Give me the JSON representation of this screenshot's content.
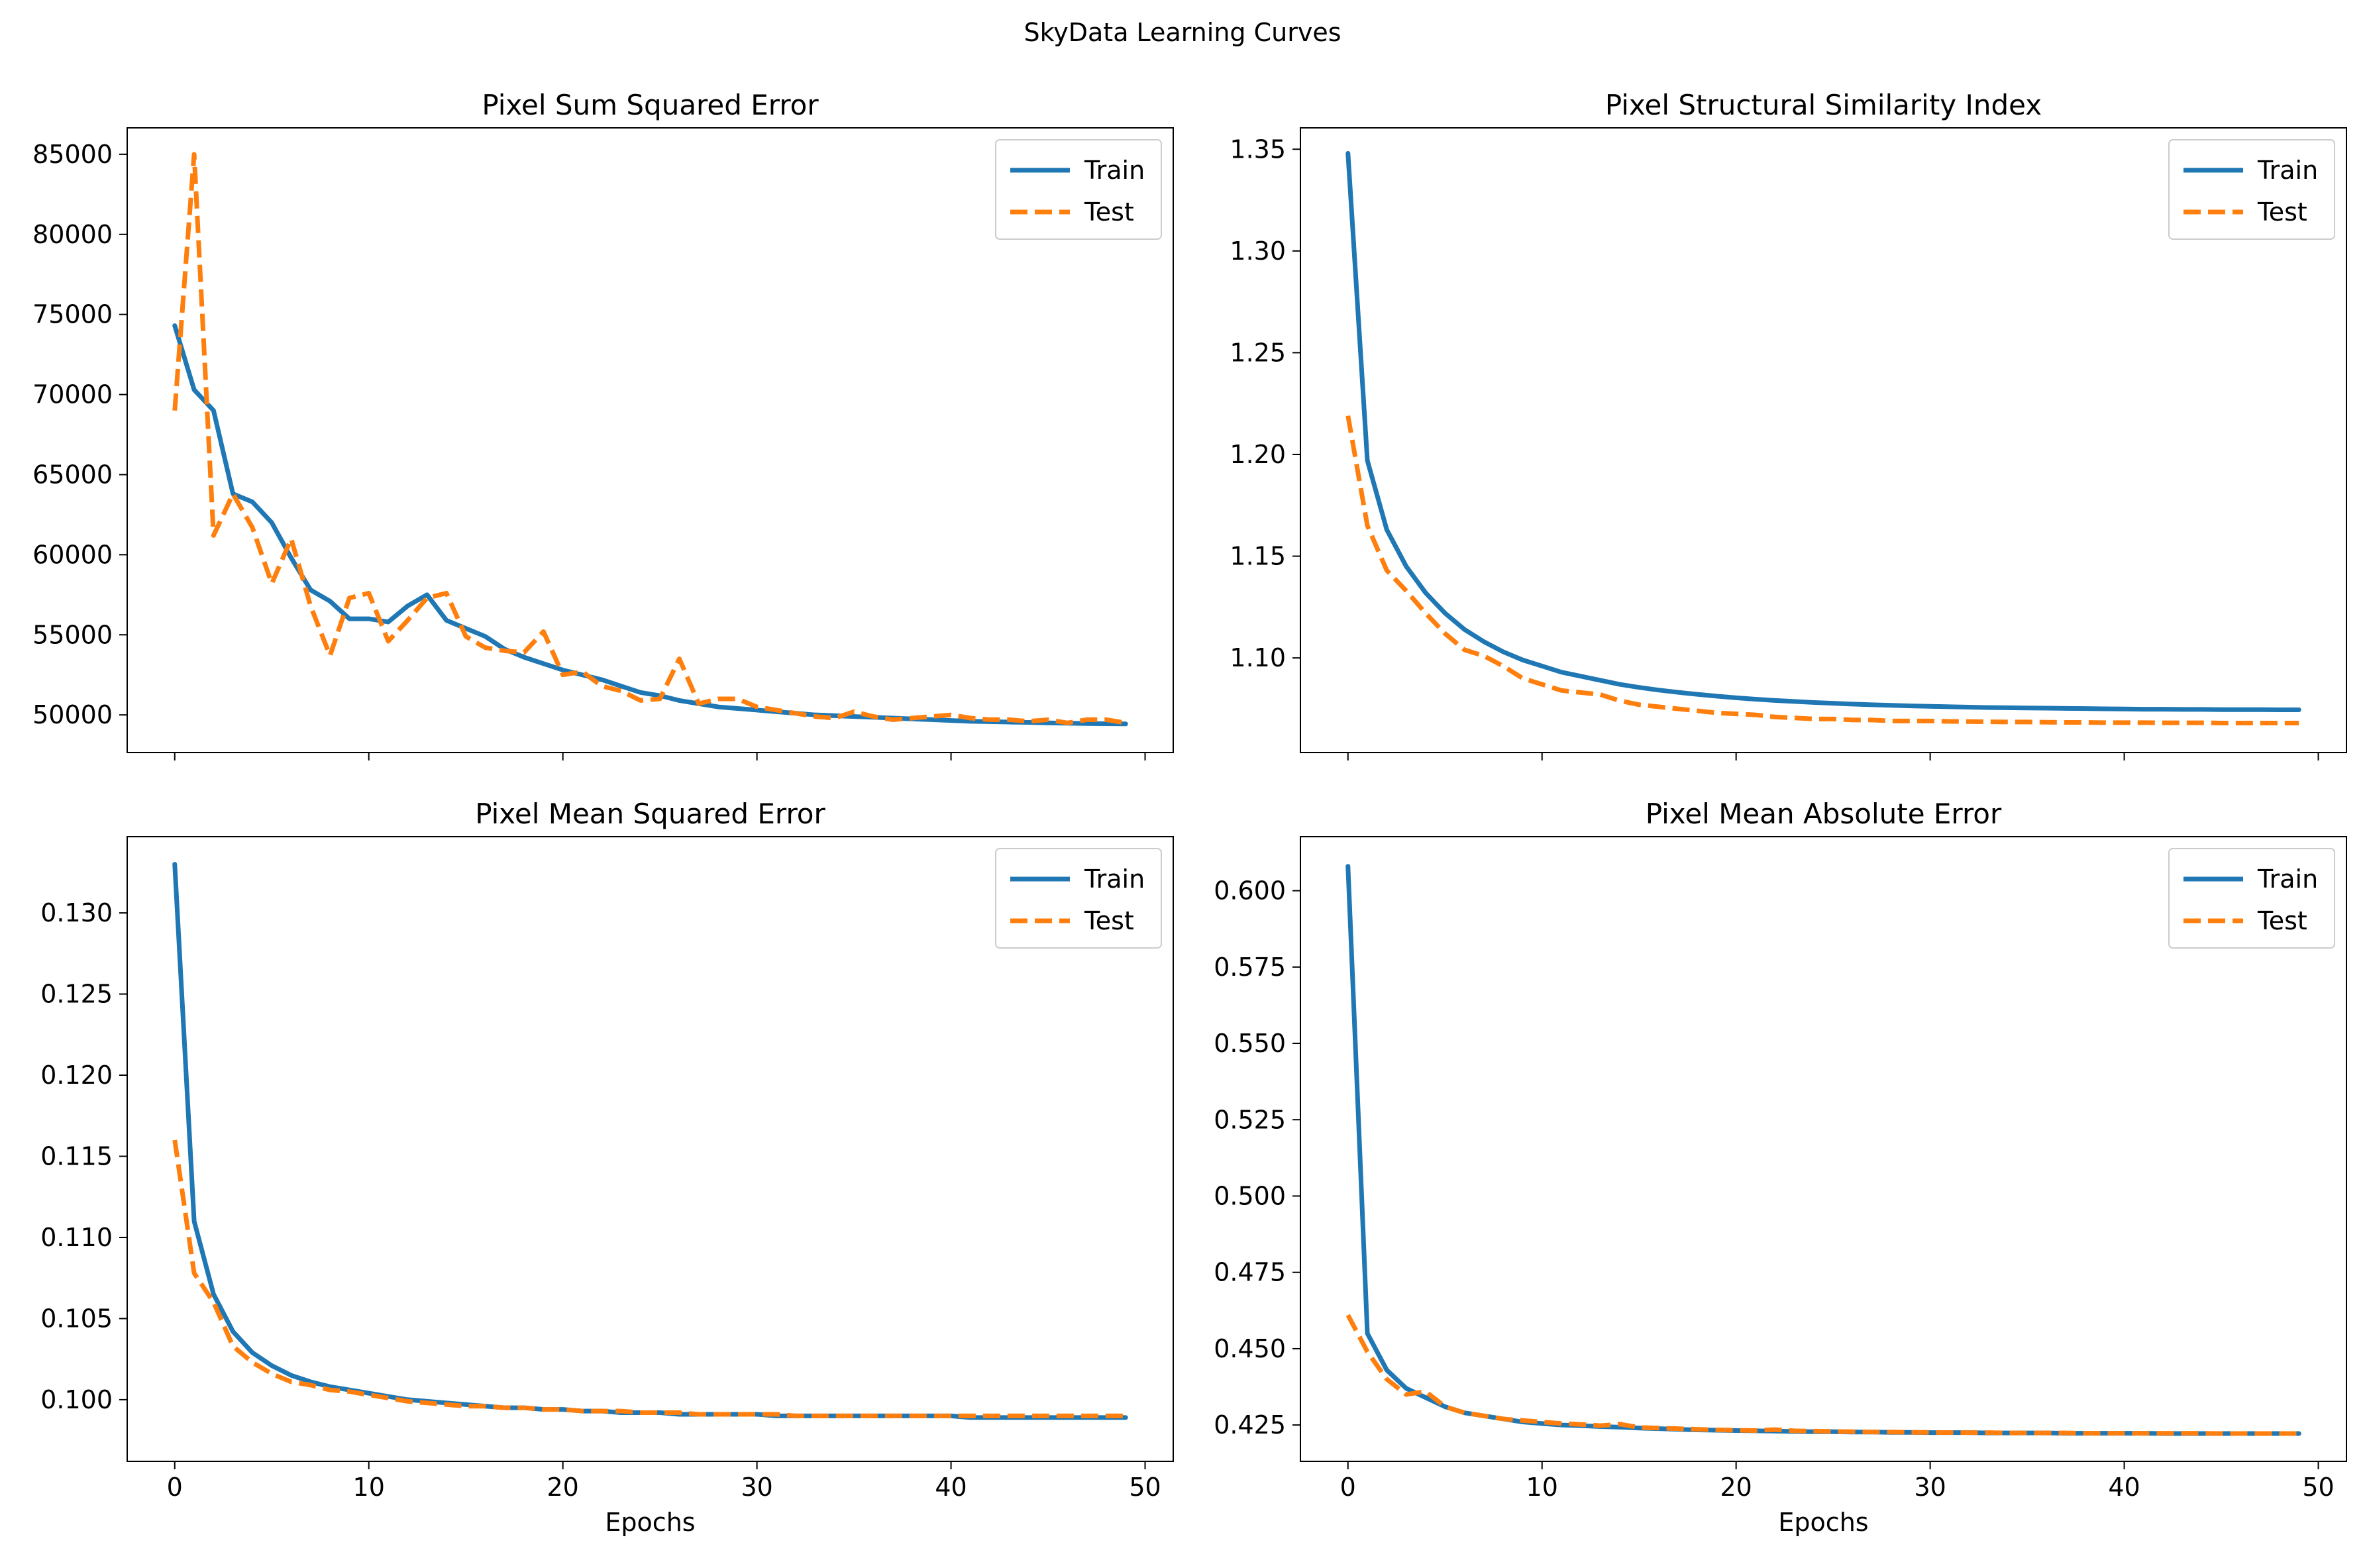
{
  "figure": {
    "title": "SkyData Learning Curves"
  },
  "colors": {
    "train": "#1f77b4",
    "test": "#ff7f0e",
    "axes": "#000000",
    "background": "#ffffff"
  },
  "chart_data": [
    {
      "type": "line",
      "title": "Pixel Sum Squared Error",
      "xlabel": "",
      "ylabel": "",
      "xlim": [
        -2.45,
        51.45
      ],
      "ylim": [
        47650,
        86650
      ],
      "xticks": [
        0,
        10,
        20,
        30,
        40,
        50
      ],
      "xtick_labels": [
        "",
        "",
        "",
        "",
        "",
        ""
      ],
      "yticks": [
        50000,
        55000,
        60000,
        65000,
        70000,
        75000,
        80000,
        85000
      ],
      "ytick_labels": [
        "50000",
        "55000",
        "60000",
        "65000",
        "70000",
        "75000",
        "80000",
        "85000"
      ],
      "legend": {
        "position": "upper right",
        "entries": [
          "Train",
          "Test"
        ]
      },
      "grid": false,
      "series": [
        {
          "name": "Train",
          "style": "solid",
          "x": [
            0,
            1,
            2,
            3,
            4,
            5,
            6,
            7,
            8,
            9,
            10,
            11,
            12,
            13,
            14,
            15,
            16,
            17,
            18,
            19,
            20,
            21,
            22,
            23,
            24,
            25,
            26,
            27,
            28,
            29,
            30,
            31,
            32,
            33,
            34,
            35,
            36,
            37,
            38,
            39,
            40,
            41,
            42,
            43,
            44,
            45,
            46,
            47,
            48,
            49
          ],
          "y": [
            74300,
            70300,
            69000,
            63800,
            63300,
            62000,
            59800,
            57800,
            57100,
            56000,
            56000,
            55800,
            56800,
            57500,
            55900,
            55400,
            54900,
            54100,
            53600,
            53200,
            52800,
            52500,
            52200,
            51800,
            51400,
            51200,
            50900,
            50700,
            50500,
            50400,
            50300,
            50200,
            50100,
            50000,
            49950,
            49900,
            49850,
            49800,
            49750,
            49700,
            49650,
            49600,
            49580,
            49550,
            49530,
            49500,
            49480,
            49460,
            49450,
            49440
          ]
        },
        {
          "name": "Test",
          "style": "dashed",
          "x": [
            0,
            1,
            2,
            3,
            4,
            5,
            6,
            7,
            8,
            9,
            10,
            11,
            12,
            13,
            14,
            15,
            16,
            17,
            18,
            19,
            20,
            21,
            22,
            23,
            24,
            25,
            26,
            27,
            28,
            29,
            30,
            31,
            32,
            33,
            34,
            35,
            36,
            37,
            38,
            39,
            40,
            41,
            42,
            43,
            44,
            45,
            46,
            47,
            48,
            49
          ],
          "y": [
            69000,
            85000,
            61200,
            63800,
            61700,
            58200,
            61000,
            56800,
            53700,
            57300,
            57600,
            54600,
            55900,
            57300,
            57600,
            54900,
            54200,
            54000,
            53900,
            55200,
            52500,
            52700,
            51800,
            51500,
            50900,
            51000,
            53500,
            50700,
            51000,
            51000,
            50500,
            50300,
            50100,
            49900,
            49800,
            50200,
            49900,
            49700,
            49800,
            49900,
            50000,
            49800,
            49700,
            49700,
            49600,
            49700,
            49500,
            49700,
            49700,
            49500
          ]
        }
      ]
    },
    {
      "type": "line",
      "title": "Pixel Structural Similarity Index",
      "xlabel": "",
      "ylabel": "",
      "xlim": [
        -2.45,
        51.45
      ],
      "ylim": [
        1.0535,
        1.3605
      ],
      "xticks": [
        0,
        10,
        20,
        30,
        40,
        50
      ],
      "xtick_labels": [
        "",
        "",
        "",
        "",
        "",
        ""
      ],
      "yticks": [
        1.1,
        1.15,
        1.2,
        1.25,
        1.3,
        1.35
      ],
      "ytick_labels": [
        "1.10",
        "1.15",
        "1.20",
        "1.25",
        "1.30",
        "1.35"
      ],
      "legend": {
        "position": "upper right",
        "entries": [
          "Train",
          "Test"
        ]
      },
      "grid": false,
      "series": [
        {
          "name": "Train",
          "style": "solid",
          "x": [
            0,
            1,
            2,
            3,
            4,
            5,
            6,
            7,
            8,
            9,
            10,
            11,
            12,
            13,
            14,
            15,
            16,
            17,
            18,
            19,
            20,
            21,
            22,
            23,
            24,
            25,
            26,
            27,
            28,
            29,
            30,
            31,
            32,
            33,
            34,
            35,
            36,
            37,
            38,
            39,
            40,
            41,
            42,
            43,
            44,
            45,
            46,
            47,
            48,
            49
          ],
          "y": [
            1.348,
            1.197,
            1.163,
            1.145,
            1.132,
            1.122,
            1.114,
            1.108,
            1.103,
            1.099,
            1.096,
            1.093,
            1.091,
            1.089,
            1.087,
            1.0855,
            1.0842,
            1.0831,
            1.0821,
            1.0812,
            1.0804,
            1.0797,
            1.0791,
            1.0786,
            1.0781,
            1.0777,
            1.0773,
            1.077,
            1.0767,
            1.0764,
            1.0762,
            1.076,
            1.0758,
            1.0756,
            1.0755,
            1.0754,
            1.0753,
            1.0752,
            1.0751,
            1.075,
            1.0749,
            1.0748,
            1.0748,
            1.0747,
            1.0747,
            1.0746,
            1.0746,
            1.0746,
            1.0745,
            1.0745
          ]
        },
        {
          "name": "Test",
          "style": "dashed",
          "x": [
            0,
            1,
            2,
            3,
            4,
            5,
            6,
            7,
            8,
            9,
            10,
            11,
            12,
            13,
            14,
            15,
            16,
            17,
            18,
            19,
            20,
            21,
            22,
            23,
            24,
            25,
            26,
            27,
            28,
            29,
            30,
            31,
            32,
            33,
            34,
            35,
            36,
            37,
            38,
            39,
            40,
            41,
            42,
            43,
            44,
            45,
            46,
            47,
            48,
            49
          ],
          "y": [
            1.219,
            1.165,
            1.143,
            1.133,
            1.122,
            1.112,
            1.104,
            1.101,
            1.096,
            1.09,
            1.087,
            1.084,
            1.083,
            1.082,
            1.079,
            1.077,
            1.076,
            1.075,
            1.074,
            1.073,
            1.0725,
            1.072,
            1.071,
            1.0705,
            1.07,
            1.07,
            1.0695,
            1.0695,
            1.069,
            1.069,
            1.069,
            1.0688,
            1.0687,
            1.0686,
            1.0685,
            1.0685,
            1.0684,
            1.0683,
            1.0683,
            1.0682,
            1.0682,
            1.0682,
            1.0681,
            1.0681,
            1.0681,
            1.068,
            1.068,
            1.068,
            1.068,
            1.068
          ]
        }
      ]
    },
    {
      "type": "line",
      "title": "Pixel Mean Squared Error",
      "xlabel": "Epochs",
      "ylabel": "",
      "xlim": [
        -2.45,
        51.45
      ],
      "ylim": [
        0.0962,
        0.1347
      ],
      "xticks": [
        0,
        10,
        20,
        30,
        40,
        50
      ],
      "xtick_labels": [
        "0",
        "10",
        "20",
        "30",
        "40",
        "50"
      ],
      "yticks": [
        0.1,
        0.105,
        0.11,
        0.115,
        0.12,
        0.125,
        0.13
      ],
      "ytick_labels": [
        "0.100",
        "0.105",
        "0.110",
        "0.115",
        "0.120",
        "0.125",
        "0.130"
      ],
      "legend": {
        "position": "upper right",
        "entries": [
          "Train",
          "Test"
        ]
      },
      "grid": false,
      "series": [
        {
          "name": "Train",
          "style": "solid",
          "x": [
            0,
            1,
            2,
            3,
            4,
            5,
            6,
            7,
            8,
            9,
            10,
            11,
            12,
            13,
            14,
            15,
            16,
            17,
            18,
            19,
            20,
            21,
            22,
            23,
            24,
            25,
            26,
            27,
            28,
            29,
            30,
            31,
            32,
            33,
            34,
            35,
            36,
            37,
            38,
            39,
            40,
            41,
            42,
            43,
            44,
            45,
            46,
            47,
            48,
            49
          ],
          "y": [
            0.133,
            0.111,
            0.1065,
            0.1042,
            0.1029,
            0.1021,
            0.1015,
            0.1011,
            0.1008,
            0.1006,
            0.1004,
            0.1002,
            0.1,
            0.0999,
            0.0998,
            0.0997,
            0.0996,
            0.0995,
            0.0995,
            0.0994,
            0.0994,
            0.0993,
            0.0993,
            0.0992,
            0.0992,
            0.0992,
            0.0991,
            0.0991,
            0.0991,
            0.0991,
            0.0991,
            0.099,
            0.099,
            0.099,
            0.099,
            0.099,
            0.099,
            0.099,
            0.099,
            0.099,
            0.099,
            0.0989,
            0.0989,
            0.0989,
            0.0989,
            0.0989,
            0.0989,
            0.0989,
            0.0989,
            0.0989
          ]
        },
        {
          "name": "Test",
          "style": "dashed",
          "x": [
            0,
            1,
            2,
            3,
            4,
            5,
            6,
            7,
            8,
            9,
            10,
            11,
            12,
            13,
            14,
            15,
            16,
            17,
            18,
            19,
            20,
            21,
            22,
            23,
            24,
            25,
            26,
            27,
            28,
            29,
            30,
            31,
            32,
            33,
            34,
            35,
            36,
            37,
            38,
            39,
            40,
            41,
            42,
            43,
            44,
            45,
            46,
            47,
            48,
            49
          ],
          "y": [
            0.116,
            0.1078,
            0.106,
            0.1033,
            0.1023,
            0.1016,
            0.1011,
            0.1009,
            0.1006,
            0.1005,
            0.1003,
            0.1001,
            0.0999,
            0.0998,
            0.0997,
            0.0996,
            0.0996,
            0.0995,
            0.0995,
            0.0994,
            0.0994,
            0.0993,
            0.0993,
            0.0993,
            0.0992,
            0.0992,
            0.0992,
            0.0991,
            0.0991,
            0.0991,
            0.0991,
            0.0991,
            0.099,
            0.099,
            0.099,
            0.099,
            0.099,
            0.099,
            0.099,
            0.099,
            0.099,
            0.099,
            0.099,
            0.099,
            0.099,
            0.099,
            0.099,
            0.099,
            0.099,
            0.099
          ]
        }
      ]
    },
    {
      "type": "line",
      "title": "Pixel Mean Absolute Error",
      "xlabel": "Epochs",
      "ylabel": "",
      "xlim": [
        -2.45,
        51.45
      ],
      "ylim": [
        0.4131,
        0.6177
      ],
      "xticks": [
        0,
        10,
        20,
        30,
        40,
        50
      ],
      "xtick_labels": [
        "0",
        "10",
        "20",
        "30",
        "40",
        "50"
      ],
      "yticks": [
        0.425,
        0.45,
        0.475,
        0.5,
        0.525,
        0.55,
        0.575,
        0.6
      ],
      "ytick_labels": [
        "0.425",
        "0.450",
        "0.475",
        "0.500",
        "0.525",
        "0.550",
        "0.575",
        "0.600"
      ],
      "legend": {
        "position": "upper right",
        "entries": [
          "Train",
          "Test"
        ]
      },
      "grid": false,
      "series": [
        {
          "name": "Train",
          "style": "solid",
          "x": [
            0,
            1,
            2,
            3,
            4,
            5,
            6,
            7,
            8,
            9,
            10,
            11,
            12,
            13,
            14,
            15,
            16,
            17,
            18,
            19,
            20,
            21,
            22,
            23,
            24,
            25,
            26,
            27,
            28,
            29,
            30,
            31,
            32,
            33,
            34,
            35,
            36,
            37,
            38,
            39,
            40,
            41,
            42,
            43,
            44,
            45,
            46,
            47,
            48,
            49
          ],
          "y": [
            0.608,
            0.455,
            0.443,
            0.437,
            0.434,
            0.431,
            0.429,
            0.428,
            0.427,
            0.426,
            0.4255,
            0.425,
            0.4248,
            0.4245,
            0.4243,
            0.424,
            0.4238,
            0.4236,
            0.4234,
            0.4233,
            0.4232,
            0.4231,
            0.423,
            0.4229,
            0.4228,
            0.4228,
            0.4227,
            0.4227,
            0.4226,
            0.4226,
            0.4225,
            0.4225,
            0.4225,
            0.4224,
            0.4224,
            0.4224,
            0.4224,
            0.4223,
            0.4223,
            0.4223,
            0.4223,
            0.4223,
            0.4222,
            0.4222,
            0.4222,
            0.4222,
            0.4222,
            0.4222,
            0.4222,
            0.4222
          ]
        },
        {
          "name": "Test",
          "style": "dashed",
          "x": [
            0,
            1,
            2,
            3,
            4,
            5,
            6,
            7,
            8,
            9,
            10,
            11,
            12,
            13,
            14,
            15,
            16,
            17,
            18,
            19,
            20,
            21,
            22,
            23,
            24,
            25,
            26,
            27,
            28,
            29,
            30,
            31,
            32,
            33,
            34,
            35,
            36,
            37,
            38,
            39,
            40,
            41,
            42,
            43,
            44,
            45,
            46,
            47,
            48,
            49
          ],
          "y": [
            0.461,
            0.449,
            0.44,
            0.435,
            0.436,
            0.431,
            0.429,
            0.428,
            0.427,
            0.4265,
            0.426,
            0.4255,
            0.4252,
            0.4248,
            0.4253,
            0.4242,
            0.424,
            0.4238,
            0.4236,
            0.4234,
            0.4233,
            0.4232,
            0.4235,
            0.4231,
            0.423,
            0.4229,
            0.4228,
            0.4227,
            0.4227,
            0.4226,
            0.4226,
            0.4225,
            0.4225,
            0.4225,
            0.4224,
            0.4224,
            0.4224,
            0.4224,
            0.4223,
            0.4223,
            0.4223,
            0.4223,
            0.4223,
            0.4223,
            0.4223,
            0.4222,
            0.4222,
            0.4222,
            0.4222,
            0.4222
          ]
        }
      ]
    }
  ]
}
